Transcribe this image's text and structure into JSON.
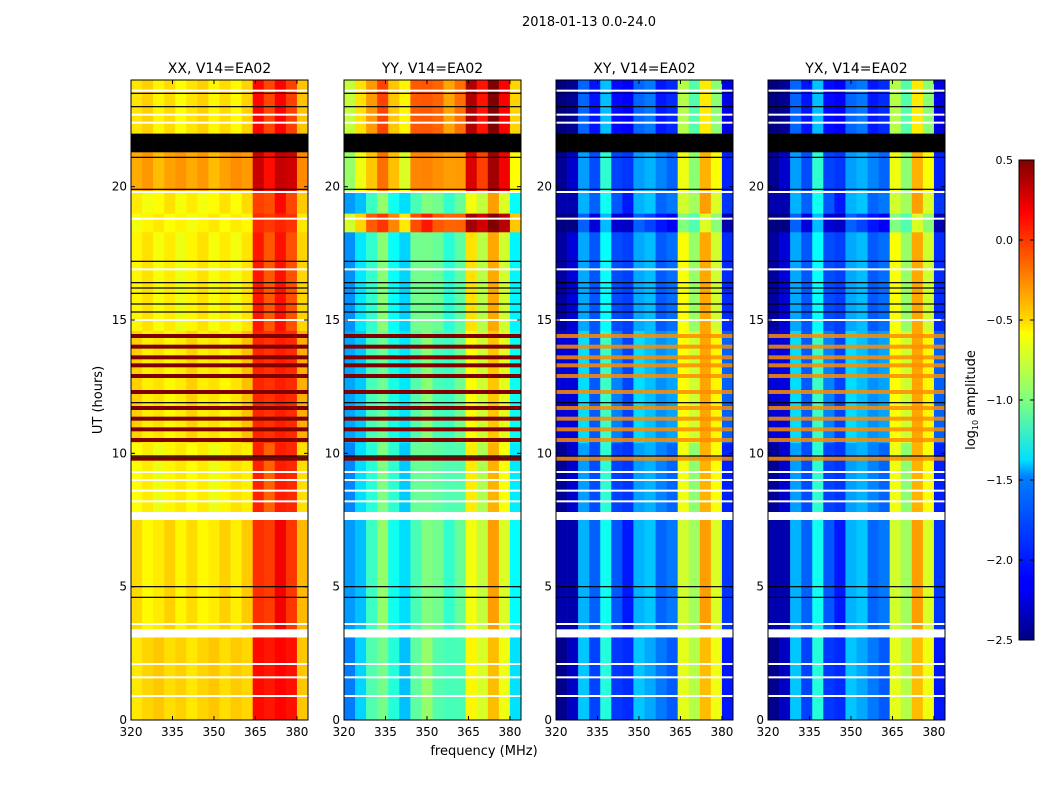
{
  "chart_data": {
    "type": "heatmap",
    "suptitle": "2018-01-13 0.0-24.0",
    "xlabel": "frequency (MHz)",
    "ylabel": "UT (hours)",
    "xlim": [
      320,
      384
    ],
    "ylim": [
      0,
      24
    ],
    "xticks": [
      320,
      335,
      350,
      365,
      380
    ],
    "yticks": [
      0,
      5,
      10,
      15,
      20
    ],
    "freq_bins": [
      320,
      324,
      328,
      332,
      336,
      340,
      344,
      348,
      352,
      356,
      360,
      364,
      368,
      372,
      376,
      380,
      384
    ],
    "time_segments": [
      [
        0,
        3.1
      ],
      [
        3.4,
        7.5
      ],
      [
        7.8,
        10.4
      ],
      [
        10.4,
        14.6
      ],
      [
        14.6,
        18.3
      ],
      [
        18.3,
        19.0
      ],
      [
        19.0,
        19.8
      ],
      [
        19.8,
        21.3
      ],
      [
        21.3,
        22.0
      ],
      [
        22.0,
        24.0
      ]
    ],
    "flagged_gaps": [
      [
        3.1,
        3.4
      ],
      [
        7.5,
        7.8
      ]
    ],
    "white_flag_rows": [
      0.9,
      1.6,
      2.1,
      3.6,
      8.2,
      8.6,
      9.0,
      9.3,
      15.0,
      16.9,
      18.8,
      19.8,
      22.4,
      22.7,
      23.6
    ],
    "black_flag_rows": [
      4.6,
      5.0,
      9.9,
      11.9,
      15.3,
      15.6,
      16.0,
      16.2,
      16.4,
      17.2,
      19.9,
      21.1,
      23.0,
      23.5
    ],
    "rfi_rows": [
      9.8,
      10.5,
      10.9,
      11.3,
      11.7,
      12.3,
      12.9,
      13.3,
      13.6,
      14.0,
      14.4
    ],
    "panels": [
      {
        "title": "XX, V14=EA02",
        "freq_profile": [
          -0.6,
          -0.6,
          -0.62,
          -0.6,
          -0.62,
          -0.6,
          -0.6,
          -0.62,
          -0.6,
          -0.6,
          -0.55,
          0.0,
          -0.1,
          0.05,
          -0.05,
          -0.5
        ],
        "segment_offsets": [
          0.1,
          0.05,
          0.0,
          0.05,
          0.0,
          0.0,
          0.0,
          0.25,
          null,
          0.05
        ]
      },
      {
        "title": "YY, V14=EA02",
        "freq_profile": [
          -1.7,
          -1.5,
          -1.2,
          -1.0,
          -1.3,
          -1.5,
          -1.1,
          -1.0,
          -1.1,
          -1.2,
          -1.1,
          -0.6,
          -0.8,
          -0.4,
          -0.7,
          -1.4
        ],
        "segment_offsets": [
          0.0,
          0.0,
          0.0,
          0.0,
          0.0,
          1.0,
          0.0,
          0.8,
          null,
          0.9
        ]
      },
      {
        "title": "XY, V14=EA02",
        "freq_profile": [
          -2.4,
          -2.3,
          -1.6,
          -1.9,
          -1.3,
          -1.9,
          -2.0,
          -1.6,
          -1.6,
          -1.8,
          -1.8,
          -0.7,
          -0.9,
          -0.4,
          -0.7,
          -2.0
        ],
        "segment_offsets": [
          0.0,
          0.0,
          0.0,
          0.1,
          0.0,
          -0.3,
          0.0,
          0.0,
          null,
          -0.2
        ]
      },
      {
        "title": "YX, V14=EA02",
        "freq_profile": [
          -2.4,
          -2.3,
          -1.6,
          -1.9,
          -1.3,
          -1.9,
          -2.0,
          -1.6,
          -1.6,
          -1.8,
          -1.8,
          -0.7,
          -0.9,
          -0.4,
          -0.7,
          -2.0
        ],
        "segment_offsets": [
          0.0,
          0.0,
          0.0,
          0.1,
          0.0,
          -0.3,
          0.0,
          0.0,
          null,
          -0.2
        ]
      }
    ],
    "colorbar": {
      "label": "log10 amplitude",
      "label_main": "log",
      "label_sub": "10",
      "label_rest": " amplitude",
      "colormap": "jet",
      "range": [
        -2.5,
        0.5
      ],
      "ticks": [
        0.5,
        0.0,
        -0.5,
        -1.0,
        -1.5,
        -2.0,
        -2.5
      ],
      "tick_labels": [
        "0.5",
        "0.0",
        "−0.5",
        "−1.0",
        "−1.5",
        "−2.0",
        "−2.5"
      ]
    }
  }
}
